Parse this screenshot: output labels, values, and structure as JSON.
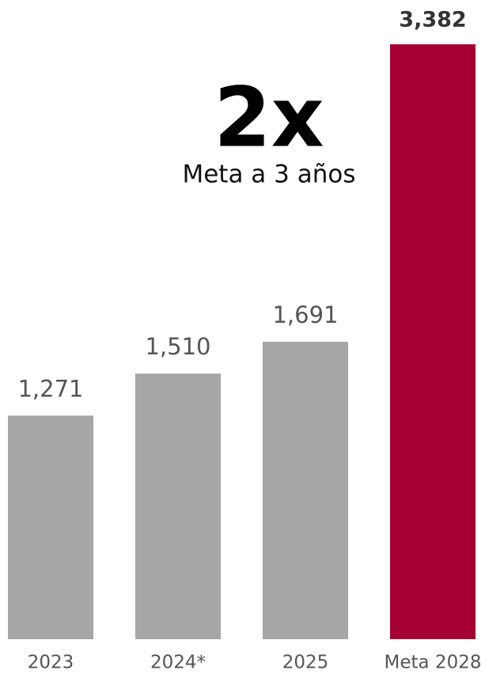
{
  "chart_data": {
    "type": "bar",
    "categories": [
      "2023",
      "2024*",
      "2025",
      "Meta 2028"
    ],
    "values": [
      1271,
      1510,
      1691,
      3382
    ],
    "value_labels": [
      "1,271",
      "1,510",
      "1,691",
      "3,382"
    ],
    "colors": [
      "#a6a6a6",
      "#a6a6a6",
      "#a6a6a6",
      "#a50034"
    ],
    "annotations": [
      "2x",
      "Meta a 3 años"
    ]
  }
}
